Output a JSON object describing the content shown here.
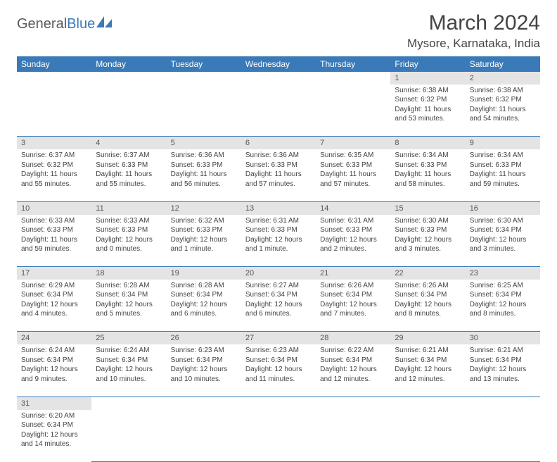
{
  "logo": {
    "general": "General",
    "blue": "Blue"
  },
  "title": "March 2024",
  "location": "Mysore, Karnataka, India",
  "colors": {
    "header_bg": "#3a7ab8",
    "header_text": "#ffffff",
    "daynum_bg": "#e4e4e4",
    "border": "#3a7ab8",
    "body_text": "#444444",
    "background": "#ffffff"
  },
  "typography": {
    "title_fontsize": 30,
    "location_fontsize": 17,
    "dayheader_fontsize": 12,
    "cell_fontsize": 10
  },
  "day_headers": [
    "Sunday",
    "Monday",
    "Tuesday",
    "Wednesday",
    "Thursday",
    "Friday",
    "Saturday"
  ],
  "weeks": [
    [
      null,
      null,
      null,
      null,
      null,
      {
        "n": "1",
        "sr": "Sunrise: 6:38 AM",
        "ss": "Sunset: 6:32 PM",
        "dl": "Daylight: 11 hours and 53 minutes."
      },
      {
        "n": "2",
        "sr": "Sunrise: 6:38 AM",
        "ss": "Sunset: 6:32 PM",
        "dl": "Daylight: 11 hours and 54 minutes."
      }
    ],
    [
      {
        "n": "3",
        "sr": "Sunrise: 6:37 AM",
        "ss": "Sunset: 6:32 PM",
        "dl": "Daylight: 11 hours and 55 minutes."
      },
      {
        "n": "4",
        "sr": "Sunrise: 6:37 AM",
        "ss": "Sunset: 6:33 PM",
        "dl": "Daylight: 11 hours and 55 minutes."
      },
      {
        "n": "5",
        "sr": "Sunrise: 6:36 AM",
        "ss": "Sunset: 6:33 PM",
        "dl": "Daylight: 11 hours and 56 minutes."
      },
      {
        "n": "6",
        "sr": "Sunrise: 6:36 AM",
        "ss": "Sunset: 6:33 PM",
        "dl": "Daylight: 11 hours and 57 minutes."
      },
      {
        "n": "7",
        "sr": "Sunrise: 6:35 AM",
        "ss": "Sunset: 6:33 PM",
        "dl": "Daylight: 11 hours and 57 minutes."
      },
      {
        "n": "8",
        "sr": "Sunrise: 6:34 AM",
        "ss": "Sunset: 6:33 PM",
        "dl": "Daylight: 11 hours and 58 minutes."
      },
      {
        "n": "9",
        "sr": "Sunrise: 6:34 AM",
        "ss": "Sunset: 6:33 PM",
        "dl": "Daylight: 11 hours and 59 minutes."
      }
    ],
    [
      {
        "n": "10",
        "sr": "Sunrise: 6:33 AM",
        "ss": "Sunset: 6:33 PM",
        "dl": "Daylight: 11 hours and 59 minutes."
      },
      {
        "n": "11",
        "sr": "Sunrise: 6:33 AM",
        "ss": "Sunset: 6:33 PM",
        "dl": "Daylight: 12 hours and 0 minutes."
      },
      {
        "n": "12",
        "sr": "Sunrise: 6:32 AM",
        "ss": "Sunset: 6:33 PM",
        "dl": "Daylight: 12 hours and 1 minute."
      },
      {
        "n": "13",
        "sr": "Sunrise: 6:31 AM",
        "ss": "Sunset: 6:33 PM",
        "dl": "Daylight: 12 hours and 1 minute."
      },
      {
        "n": "14",
        "sr": "Sunrise: 6:31 AM",
        "ss": "Sunset: 6:33 PM",
        "dl": "Daylight: 12 hours and 2 minutes."
      },
      {
        "n": "15",
        "sr": "Sunrise: 6:30 AM",
        "ss": "Sunset: 6:33 PM",
        "dl": "Daylight: 12 hours and 3 minutes."
      },
      {
        "n": "16",
        "sr": "Sunrise: 6:30 AM",
        "ss": "Sunset: 6:34 PM",
        "dl": "Daylight: 12 hours and 3 minutes."
      }
    ],
    [
      {
        "n": "17",
        "sr": "Sunrise: 6:29 AM",
        "ss": "Sunset: 6:34 PM",
        "dl": "Daylight: 12 hours and 4 minutes."
      },
      {
        "n": "18",
        "sr": "Sunrise: 6:28 AM",
        "ss": "Sunset: 6:34 PM",
        "dl": "Daylight: 12 hours and 5 minutes."
      },
      {
        "n": "19",
        "sr": "Sunrise: 6:28 AM",
        "ss": "Sunset: 6:34 PM",
        "dl": "Daylight: 12 hours and 6 minutes."
      },
      {
        "n": "20",
        "sr": "Sunrise: 6:27 AM",
        "ss": "Sunset: 6:34 PM",
        "dl": "Daylight: 12 hours and 6 minutes."
      },
      {
        "n": "21",
        "sr": "Sunrise: 6:26 AM",
        "ss": "Sunset: 6:34 PM",
        "dl": "Daylight: 12 hours and 7 minutes."
      },
      {
        "n": "22",
        "sr": "Sunrise: 6:26 AM",
        "ss": "Sunset: 6:34 PM",
        "dl": "Daylight: 12 hours and 8 minutes."
      },
      {
        "n": "23",
        "sr": "Sunrise: 6:25 AM",
        "ss": "Sunset: 6:34 PM",
        "dl": "Daylight: 12 hours and 8 minutes."
      }
    ],
    [
      {
        "n": "24",
        "sr": "Sunrise: 6:24 AM",
        "ss": "Sunset: 6:34 PM",
        "dl": "Daylight: 12 hours and 9 minutes."
      },
      {
        "n": "25",
        "sr": "Sunrise: 6:24 AM",
        "ss": "Sunset: 6:34 PM",
        "dl": "Daylight: 12 hours and 10 minutes."
      },
      {
        "n": "26",
        "sr": "Sunrise: 6:23 AM",
        "ss": "Sunset: 6:34 PM",
        "dl": "Daylight: 12 hours and 10 minutes."
      },
      {
        "n": "27",
        "sr": "Sunrise: 6:23 AM",
        "ss": "Sunset: 6:34 PM",
        "dl": "Daylight: 12 hours and 11 minutes."
      },
      {
        "n": "28",
        "sr": "Sunrise: 6:22 AM",
        "ss": "Sunset: 6:34 PM",
        "dl": "Daylight: 12 hours and 12 minutes."
      },
      {
        "n": "29",
        "sr": "Sunrise: 6:21 AM",
        "ss": "Sunset: 6:34 PM",
        "dl": "Daylight: 12 hours and 12 minutes."
      },
      {
        "n": "30",
        "sr": "Sunrise: 6:21 AM",
        "ss": "Sunset: 6:34 PM",
        "dl": "Daylight: 12 hours and 13 minutes."
      }
    ],
    [
      {
        "n": "31",
        "sr": "Sunrise: 6:20 AM",
        "ss": "Sunset: 6:34 PM",
        "dl": "Daylight: 12 hours and 14 minutes."
      },
      null,
      null,
      null,
      null,
      null,
      null
    ]
  ]
}
